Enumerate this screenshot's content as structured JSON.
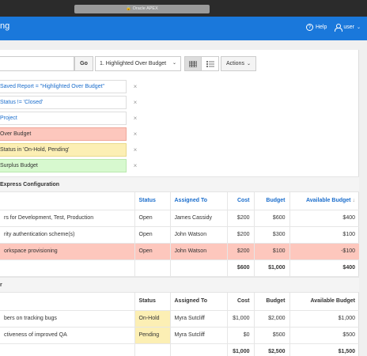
{
  "browser": {
    "url_label": "Oracle APEX"
  },
  "header": {
    "app_title": "ng",
    "help_label": "Help",
    "user_label": "user"
  },
  "toolbar": {
    "search_value": "",
    "go_label": "Go",
    "report_select_value": "1. Highlighted Over Budget",
    "actions_label": "Actions"
  },
  "filters": [
    {
      "label": "Saved Report = \"Highlighted Over Budget\"",
      "style": "blue"
    },
    {
      "label": "Status != 'Closed'",
      "style": "blue"
    },
    {
      "label": "Project",
      "style": "blue"
    },
    {
      "label": "Over Budget",
      "style": "red"
    },
    {
      "label": "Status in 'On-Hold, Pending'",
      "style": "yellow"
    },
    {
      "label": "Surplus Budget",
      "style": "green"
    }
  ],
  "groups": [
    {
      "title": "Express Configuration",
      "columns": [
        "Status",
        "Assigned To",
        "Cost",
        "Budget",
        "Available Budget"
      ],
      "rows": [
        {
          "task": "rs for Development, Test, Production",
          "status": "Open",
          "assigned": "James Cassidy",
          "cost": "$200",
          "budget": "$600",
          "available": "$400"
        },
        {
          "task": "rity authentication scheme(s)",
          "status": "Open",
          "assigned": "John Watson",
          "cost": "$200",
          "budget": "$300",
          "available": "$100"
        },
        {
          "task": "orkspace provisioning",
          "status": "Open",
          "assigned": "John Watson",
          "cost": "$200",
          "budget": "$100",
          "available": "-$100"
        }
      ],
      "totals": {
        "cost": "$600",
        "budget": "$1,000",
        "available": "$400"
      }
    },
    {
      "title": "r",
      "columns": [
        "Status",
        "Assigned To",
        "Cost",
        "Budget",
        "Available Budget"
      ],
      "rows": [
        {
          "task": "bers on tracking bugs",
          "status": "On-Hold",
          "assigned": "Myra Sutcliff",
          "cost": "$1,000",
          "budget": "$2,000",
          "available": "$1,000"
        },
        {
          "task": "ctiveness of improved QA",
          "status": "Pending",
          "assigned": "Myra Sutcliff",
          "cost": "$0",
          "budget": "$500",
          "available": "$500"
        }
      ],
      "totals": {
        "cost": "$1,000",
        "budget": "$2,500",
        "available": "$1,500"
      }
    }
  ],
  "colors": {
    "header_blue": "#1a78db",
    "over_budget": "#fdc7bd",
    "on_hold": "#fcefb4",
    "surplus": "#d7f9cf",
    "link_blue": "#1a6dcc"
  },
  "icons": {
    "view_icon": "grid-view-icon",
    "view2_icon": "detail-view-icon",
    "help_icon": "help-circle-icon",
    "user_icon": "user-icon",
    "remove_icon": "close-icon"
  }
}
